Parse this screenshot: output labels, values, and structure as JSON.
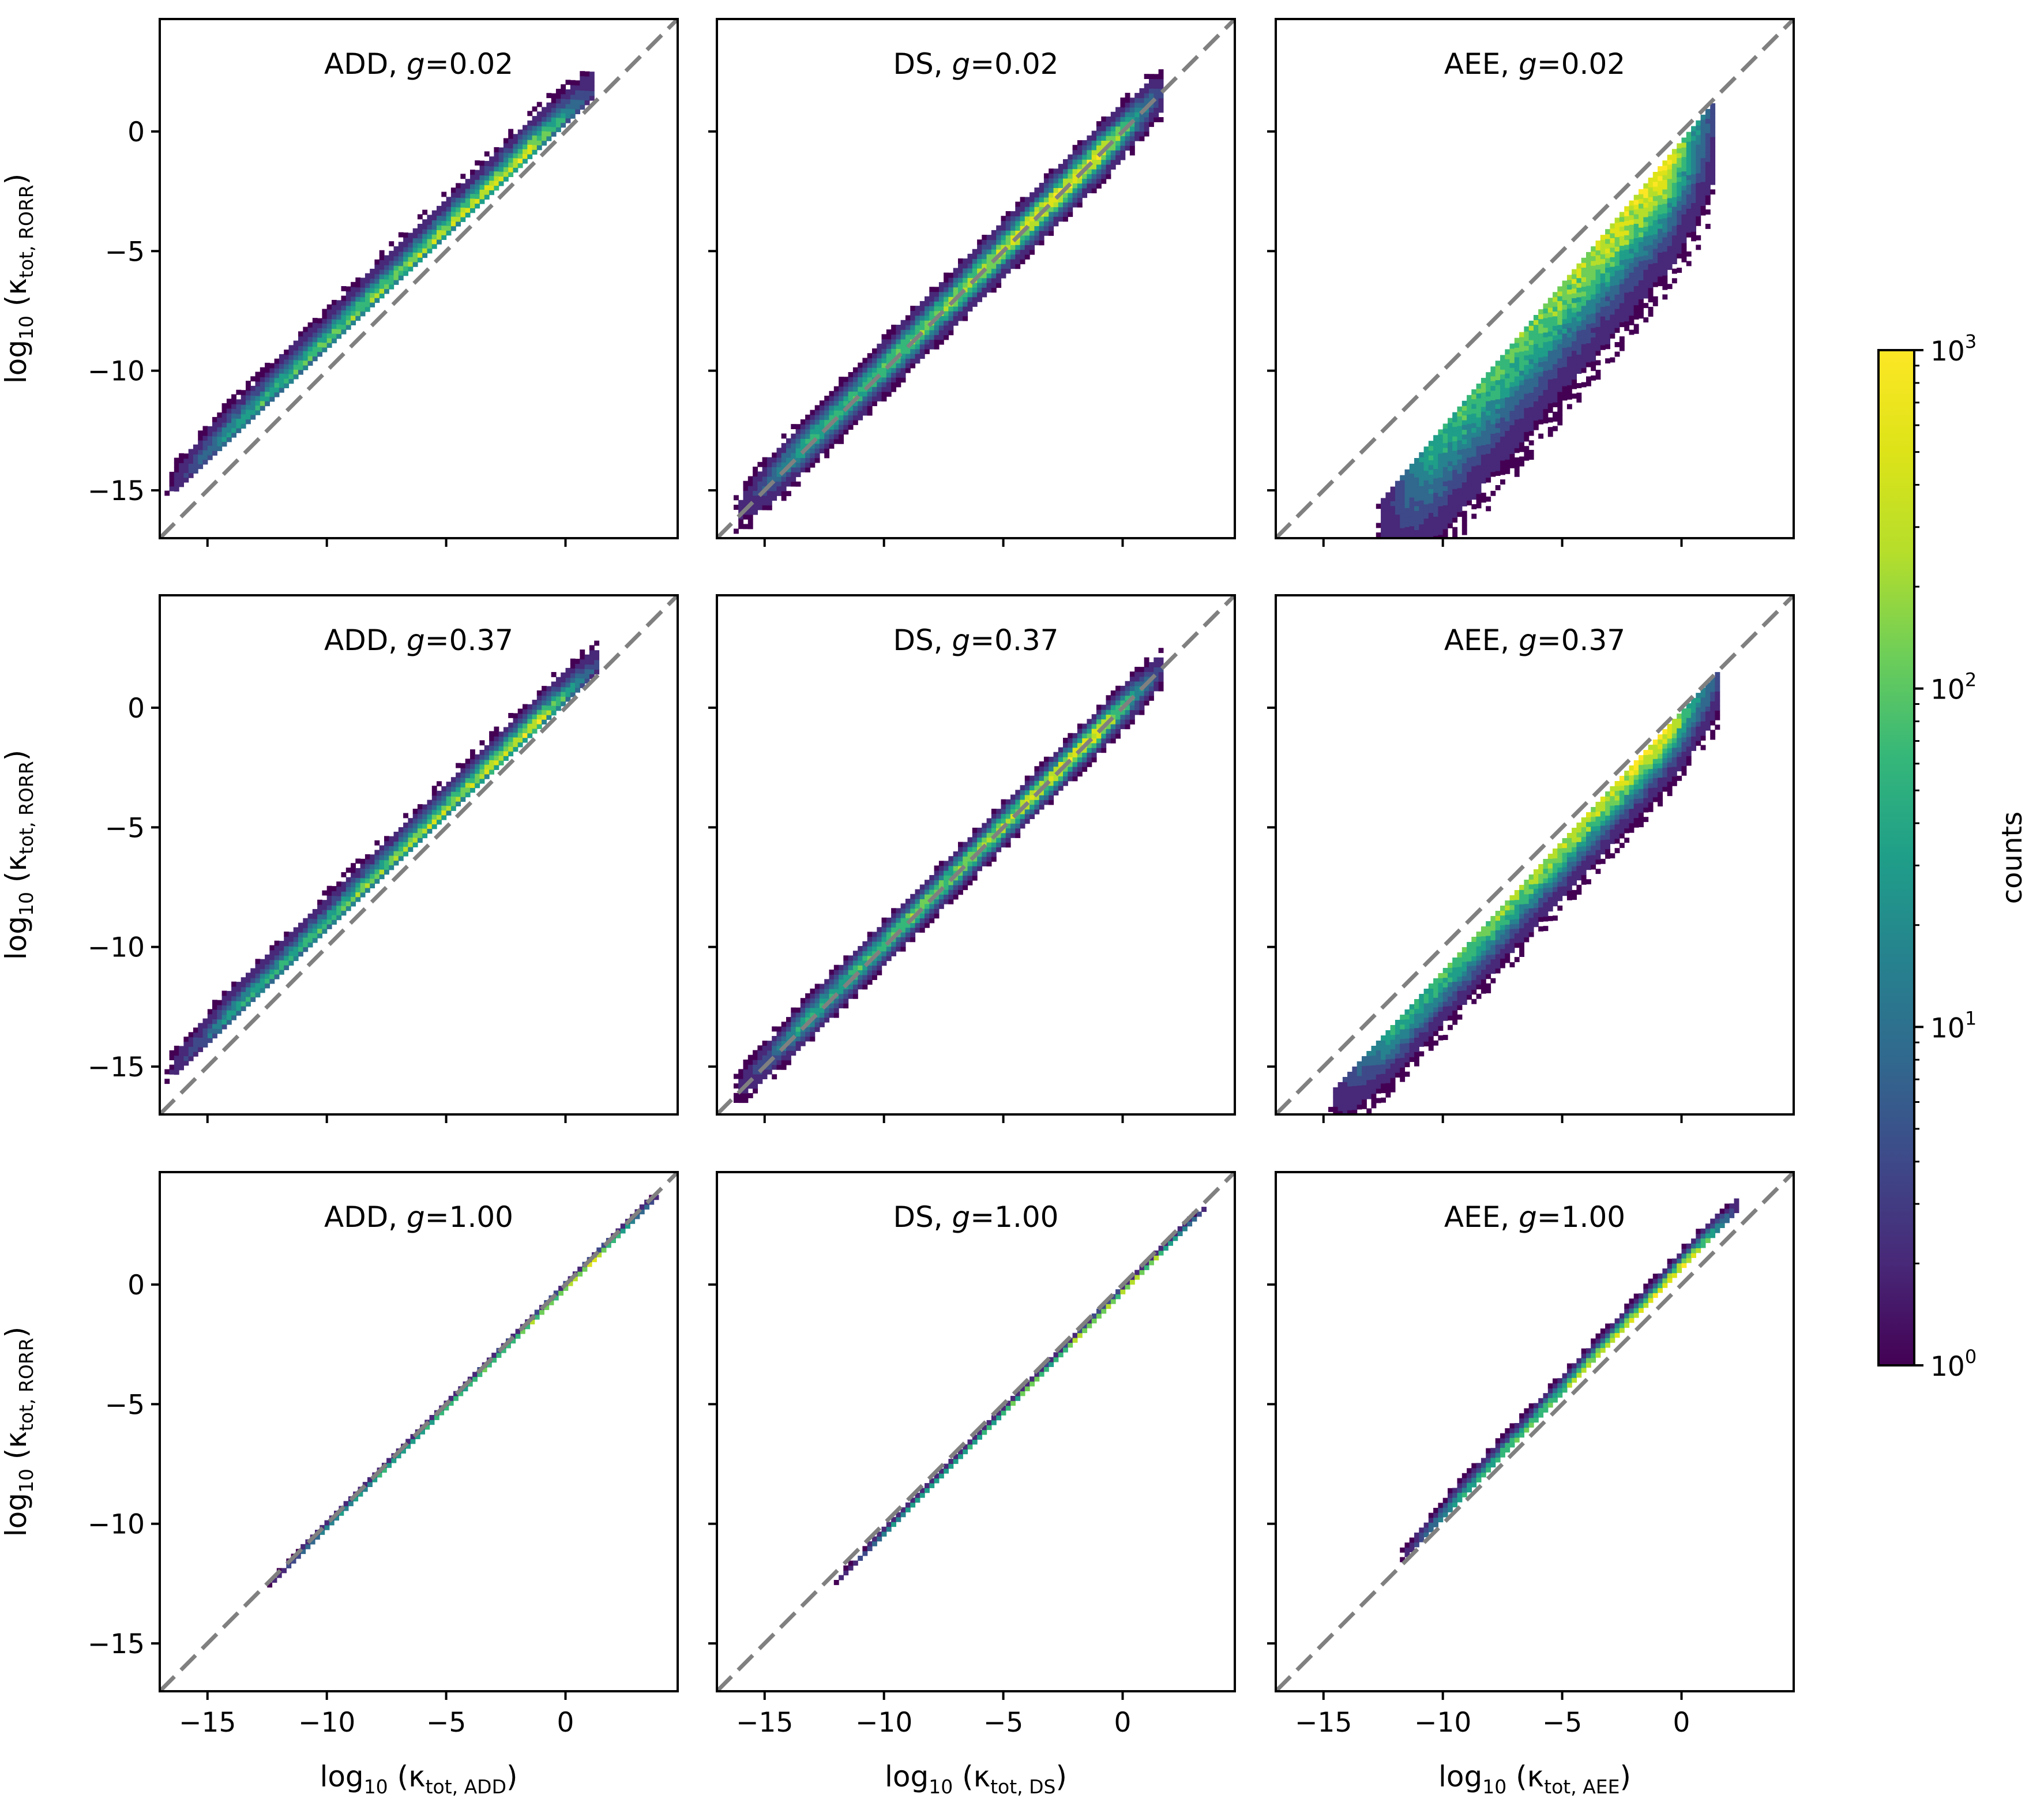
{
  "figure": {
    "colorbar": {
      "label": "counts",
      "scale": "log",
      "range": [
        1,
        1000
      ],
      "ticks": [
        {
          "base": "10",
          "exp": "0"
        },
        {
          "base": "10",
          "exp": "1"
        },
        {
          "base": "10",
          "exp": "2"
        },
        {
          "base": "10",
          "exp": "3"
        }
      ],
      "colormap": "viridis"
    },
    "xlabels": [
      {
        "pre": "log",
        "sub10": "10",
        "kappa": "(κ",
        "sub": "tot, ADD",
        "post": ")"
      },
      {
        "pre": "log",
        "sub10": "10",
        "kappa": "(κ",
        "sub": "tot, DS",
        "post": ")"
      },
      {
        "pre": "log",
        "sub10": "10",
        "kappa": "(κ",
        "sub": "tot, AEE",
        "post": ")"
      }
    ],
    "ylabel": {
      "pre": "log",
      "sub10": "10",
      "kappa": "(κ",
      "sub": "tot, RORR",
      "post": ")"
    }
  },
  "chart_data": [
    {
      "type": "heatmap",
      "title": "ADD, g=0.02",
      "method": "ADD",
      "g": 0.02,
      "xlim": [
        -17,
        4.7
      ],
      "ylim": [
        -17,
        4.7
      ],
      "xticks": [
        -15,
        -10,
        -5,
        0
      ],
      "yticks": [
        -15,
        -10,
        -5,
        0
      ],
      "xlabel": "log10 (κtot, ADD)",
      "ylabel": "log10 (κtot, RORR)",
      "reference_line": "y = x (dashed gray)",
      "density_ridge": {
        "x_range": [
          -17,
          1
        ],
        "offset_at_low_x": 1.5,
        "offset_at_high_x": 0.4,
        "spread_above": 1.8,
        "spread_below": 0.3
      }
    },
    {
      "type": "heatmap",
      "title": "DS, g=0.02",
      "method": "DS",
      "g": 0.02,
      "xlim": [
        -17,
        4.7
      ],
      "ylim": [
        -17,
        4.7
      ],
      "xticks": [
        -15,
        -10,
        -5,
        0
      ],
      "yticks": [
        -15,
        -10,
        -5,
        0
      ],
      "xlabel": "log10 (κtot, DS)",
      "ylabel": "log10 (κtot, RORR)",
      "reference_line": "y = x (dashed gray)",
      "density_ridge": {
        "x_range": [
          -16.5,
          1.5
        ],
        "offset_at_low_x": 0.2,
        "offset_at_high_x": 0,
        "spread_above": 1.5,
        "spread_below": 1.5
      }
    },
    {
      "type": "heatmap",
      "title": "AEE, g=0.02",
      "method": "AEE",
      "g": 0.02,
      "xlim": [
        -17,
        4.7
      ],
      "ylim": [
        -17,
        4.7
      ],
      "xticks": [
        -15,
        -10,
        -5,
        0
      ],
      "yticks": [
        -15,
        -10,
        -5,
        0
      ],
      "xlabel": "log10 (κtot, AEE)",
      "ylabel": "log10 (κtot, RORR)",
      "reference_line": "y = x (dashed gray)",
      "density_ridge": {
        "x_range": [
          -13,
          1.3
        ],
        "offset_at_low_x": -3,
        "offset_at_high_x": -0.2,
        "spread_above": 0.2,
        "spread_below": 6.0
      }
    },
    {
      "type": "heatmap",
      "title": "ADD, g=0.37",
      "method": "ADD",
      "g": 0.37,
      "xlim": [
        -17,
        4.7
      ],
      "ylim": [
        -17,
        4.7
      ],
      "xticks": [
        -15,
        -10,
        -5,
        0
      ],
      "yticks": [
        -15,
        -10,
        -5,
        0
      ],
      "xlabel": "log10 (κtot, ADD)",
      "ylabel": "log10 (κtot, RORR)",
      "reference_line": "y = x (dashed gray)",
      "density_ridge": {
        "x_range": [
          -17,
          1.3
        ],
        "offset_at_low_x": 1.2,
        "offset_at_high_x": 0.3,
        "spread_above": 1.6,
        "spread_below": 0.3
      }
    },
    {
      "type": "heatmap",
      "title": "DS, g=0.37",
      "method": "DS",
      "g": 0.37,
      "xlim": [
        -17,
        4.7
      ],
      "ylim": [
        -17,
        4.7
      ],
      "xticks": [
        -15,
        -10,
        -5,
        0
      ],
      "yticks": [
        -15,
        -10,
        -5,
        0
      ],
      "xlabel": "log10 (κtot, DS)",
      "ylabel": "log10 (κtot, RORR)",
      "reference_line": "y = x (dashed gray)",
      "density_ridge": {
        "x_range": [
          -16.5,
          1.5
        ],
        "offset_at_low_x": 0.2,
        "offset_at_high_x": 0,
        "spread_above": 1.2,
        "spread_below": 1.2
      }
    },
    {
      "type": "heatmap",
      "title": "AEE, g=0.37",
      "method": "AEE",
      "g": 0.37,
      "xlim": [
        -17,
        4.7
      ],
      "ylim": [
        -17,
        4.7
      ],
      "xticks": [
        -15,
        -10,
        -5,
        0
      ],
      "yticks": [
        -15,
        -10,
        -5,
        0
      ],
      "xlabel": "log10 (κtot, AEE)",
      "ylabel": "log10 (κtot, RORR)",
      "reference_line": "y = x (dashed gray)",
      "density_ridge": {
        "x_range": [
          -15,
          1.5
        ],
        "offset_at_low_x": -1.5,
        "offset_at_high_x": -0.1,
        "spread_above": 0.2,
        "spread_below": 3.0
      }
    },
    {
      "type": "heatmap",
      "title": "ADD, g=1.00",
      "method": "ADD",
      "g": 1.0,
      "xlim": [
        -17,
        4.7
      ],
      "ylim": [
        -17,
        4.7
      ],
      "xticks": [
        -15,
        -10,
        -5,
        0
      ],
      "yticks": [
        -15,
        -10,
        -5,
        0
      ],
      "xlabel": "log10 (κtot, ADD)",
      "ylabel": "log10 (κtot, RORR)",
      "reference_line": "y = x (dashed gray)",
      "density_ridge": {
        "x_range": [
          -12.7,
          3.7
        ],
        "offset_at_low_x": -0.1,
        "offset_at_high_x": -0.1,
        "spread_above": 0.25,
        "spread_below": 0.25
      }
    },
    {
      "type": "heatmap",
      "title": "DS, g=1.00",
      "method": "DS",
      "g": 1.0,
      "xlim": [
        -17,
        4.7
      ],
      "ylim": [
        -17,
        4.7
      ],
      "xticks": [
        -15,
        -10,
        -5,
        0
      ],
      "yticks": [
        -15,
        -10,
        -5,
        0
      ],
      "xlabel": "log10 (κtot, DS)",
      "ylabel": "log10 (κtot, RORR)",
      "reference_line": "y = x (dashed gray)",
      "density_ridge": {
        "x_range": [
          -12.3,
          3.3
        ],
        "offset_at_low_x": -0.4,
        "offset_at_high_x": -0.2,
        "spread_above": 0.25,
        "spread_below": 0.25
      }
    },
    {
      "type": "heatmap",
      "title": "AEE, g=1.00",
      "method": "AEE",
      "g": 1.0,
      "xlim": [
        -17,
        4.7
      ],
      "ylim": [
        -17,
        4.7
      ],
      "xticks": [
        -15,
        -10,
        -5,
        0
      ],
      "yticks": [
        -15,
        -10,
        -5,
        0
      ],
      "xlabel": "log10 (κtot, AEE)",
      "ylabel": "log10 (κtot, RORR)",
      "reference_line": "y = x (dashed gray)",
      "density_ridge": {
        "x_range": [
          -12,
          2.2
        ],
        "offset_at_low_x": 0.2,
        "offset_at_high_x": 0.8,
        "spread_above": 0.9,
        "spread_below": 0.2
      }
    }
  ]
}
